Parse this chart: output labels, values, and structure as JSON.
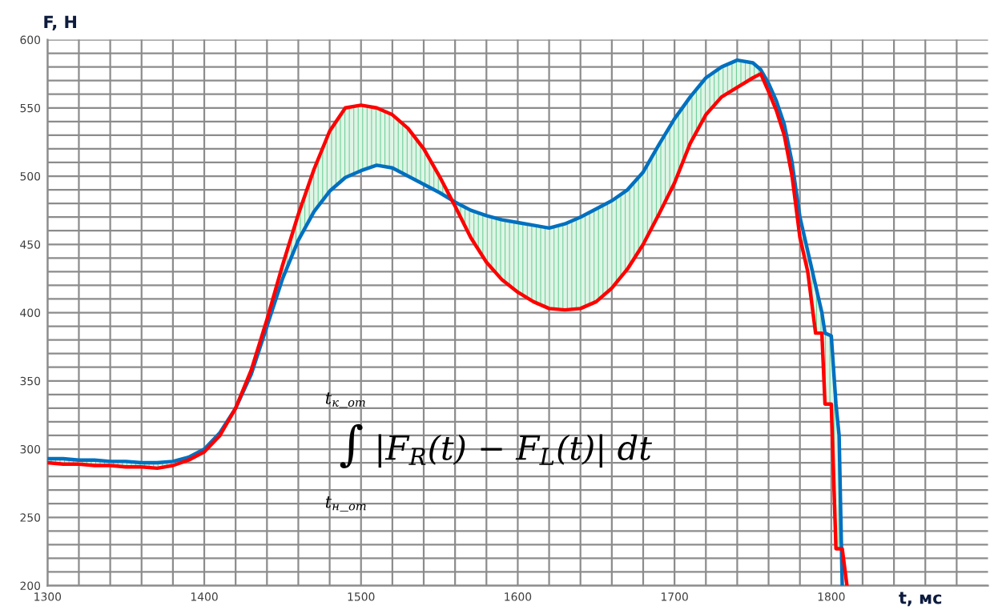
{
  "chart_data": {
    "type": "line",
    "xlabel": "t, мс",
    "ylabel": "F, Н",
    "x": [
      1300,
      1310,
      1320,
      1330,
      1340,
      1350,
      1360,
      1370,
      1380,
      1390,
      1400,
      1410,
      1420,
      1430,
      1440,
      1450,
      1460,
      1470,
      1480,
      1490,
      1500,
      1510,
      1520,
      1530,
      1540,
      1550,
      1560,
      1570,
      1580,
      1590,
      1600,
      1610,
      1620,
      1630,
      1640,
      1650,
      1660,
      1670,
      1680,
      1690,
      1700,
      1710,
      1720,
      1730,
      1740,
      1750,
      1755,
      1760,
      1765,
      1770,
      1775,
      1780,
      1785,
      1790,
      1794,
      1796,
      1800,
      1803,
      1805,
      1807,
      1810
    ],
    "series": [
      {
        "color": "#0070c0",
        "values": [
          293,
          293,
          292,
          292,
          291,
          291,
          290,
          290,
          291,
          294,
          300,
          312,
          330,
          355,
          390,
          425,
          453,
          474,
          489,
          499,
          504,
          508,
          506,
          500,
          494,
          488,
          481,
          475,
          471,
          468,
          466,
          464,
          462,
          465,
          470,
          476,
          482,
          490,
          503,
          523,
          542,
          558,
          572,
          580,
          585,
          583,
          578,
          568,
          555,
          538,
          510,
          470,
          445,
          420,
          400,
          385,
          383,
          333,
          310,
          200,
          null
        ],
        "lower": [
          290,
          289,
          289,
          288,
          288,
          287,
          287,
          286,
          288,
          292,
          298,
          310,
          330,
          358,
          395,
          435,
          472,
          505,
          533,
          550,
          552,
          550,
          545,
          535,
          520,
          500,
          478,
          455,
          437,
          424,
          415,
          408,
          403,
          402,
          403,
          408,
          418,
          432,
          450,
          472,
          495,
          524,
          545,
          558,
          565,
          572,
          575,
          562,
          548,
          530,
          500,
          455,
          430,
          385,
          385,
          333,
          333,
          227,
          227,
          227,
          null
        ],
        "upper": [
          293,
          293,
          292,
          292,
          291,
          291,
          290,
          290,
          291,
          294,
          300,
          312,
          330,
          355,
          390,
          425,
          453,
          474,
          489,
          499,
          504,
          508,
          506,
          500,
          494,
          488,
          481,
          475,
          471,
          468,
          466,
          464,
          462,
          465,
          470,
          476,
          482,
          490,
          503,
          523,
          542,
          558,
          572,
          580,
          585,
          583,
          578,
          568,
          555,
          538,
          510,
          470,
          445,
          420,
          400,
          385,
          383,
          333,
          310,
          200,
          null
        ]
      },
      {
        "color": "#ff0000",
        "values": [
          290,
          289,
          289,
          288,
          288,
          287,
          287,
          286,
          288,
          292,
          298,
          310,
          330,
          358,
          395,
          435,
          472,
          505,
          533,
          550,
          552,
          550,
          545,
          535,
          520,
          500,
          478,
          455,
          437,
          424,
          415,
          408,
          403,
          402,
          403,
          408,
          418,
          432,
          450,
          472,
          495,
          524,
          545,
          558,
          565,
          572,
          575,
          562,
          548,
          530,
          500,
          455,
          430,
          385,
          385,
          333,
          333,
          227,
          227,
          227,
          200
        ]
      }
    ],
    "xlim": [
      1300,
      1900
    ],
    "xticks": [
      1300,
      {
        "value": 1320,
        "label": null
      },
      {
        "value": 1340,
        "label": null
      },
      {
        "value": 1360,
        "label": null
      },
      {
        "value": 1380,
        "label": null
      },
      1400,
      {
        "value": 1420,
        "label": null
      },
      {
        "value": 1440,
        "label": null
      },
      {
        "value": 1460,
        "label": null
      },
      {
        "value": 1480,
        "label": null
      },
      1500,
      {
        "value": 1520,
        "label": null
      },
      {
        "value": 1540,
        "label": null
      },
      {
        "value": 1560,
        "label": null
      },
      {
        "value": 1580,
        "label": null
      },
      1600,
      {
        "value": 1620,
        "label": null
      },
      {
        "value": 1640,
        "label": null
      },
      {
        "value": 1660,
        "label": null
      },
      {
        "value": 1680,
        "label": null
      },
      1700,
      {
        "value": 1720,
        "label": null
      },
      {
        "value": 1740,
        "label": null
      },
      {
        "value": 1760,
        "label": null
      },
      {
        "value": 1780,
        "label": null
      },
      1800,
      {
        "value": 1820,
        "label": null
      },
      {
        "value": 1840,
        "label": null
      },
      {
        "value": 1860,
        "label": null
      },
      {
        "value": 1880,
        "label": null
      }
    ],
    "ylim": [
      200,
      600
    ],
    "yticks": [
      200,
      {
        "value": 210,
        "label": null
      },
      {
        "value": 220,
        "label": null
      },
      {
        "value": 230,
        "label": null
      },
      {
        "value": 240,
        "label": null
      },
      250,
      {
        "value": 260,
        "label": null
      },
      {
        "value": 270,
        "label": null
      },
      {
        "value": 280,
        "label": null
      },
      {
        "value": 290,
        "label": null
      },
      300,
      {
        "value": 310,
        "label": null
      },
      {
        "value": 320,
        "label": null
      },
      {
        "value": 330,
        "label": null
      },
      {
        "value": 340,
        "label": null
      },
      350,
      {
        "value": 360,
        "label": null
      },
      {
        "value": 370,
        "label": null
      },
      {
        "value": 380,
        "label": null
      },
      {
        "value": 390,
        "label": null
      },
      400,
      {
        "value": 410,
        "label": null
      },
      {
        "value": 420,
        "label": null
      },
      {
        "value": 430,
        "label": null
      },
      {
        "value": 440,
        "label": null
      },
      450,
      {
        "value": 460,
        "label": null
      },
      {
        "value": 470,
        "label": null
      },
      {
        "value": 480,
        "label": null
      },
      {
        "value": 490,
        "label": null
      },
      500,
      {
        "value": 510,
        "label": null
      },
      {
        "value": 520,
        "label": null
      },
      {
        "value": 530,
        "label": null
      },
      {
        "value": 540,
        "label": null
      },
      550,
      {
        "value": 560,
        "label": null
      },
      {
        "value": 570,
        "label": null
      },
      {
        "value": 580,
        "label": null
      },
      {
        "value": 590,
        "label": null
      },
      600
    ],
    "grid": true,
    "marker": "none",
    "line_style": "solid",
    "legend": false,
    "annotations": [
      "t$_{к}$_$_{от}$",
      "∫ |F$_{R}$(t) − F$_{L}$(t)| dt",
      "t$_{н}$_$_{от}$"
    ]
  }
}
